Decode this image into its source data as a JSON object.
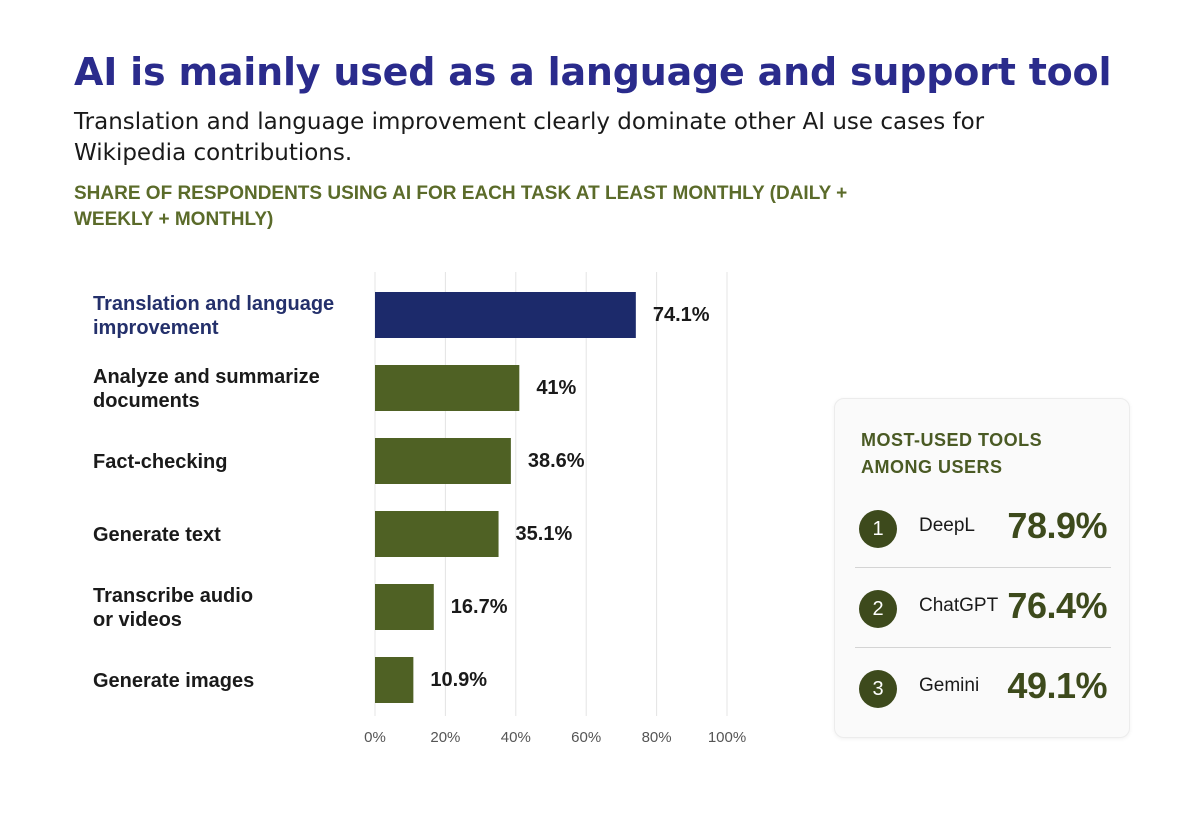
{
  "header": {
    "title": "AI is mainly used as a language and support tool",
    "subtitle": "Translation and language improvement clearly dominate other AI use cases for Wikipedia contributions.",
    "chart_heading": "SHARE OF RESPONDENTS USING AI FOR EACH TASK AT LEAST MONTHLY (DAILY + WEEKLY + MONTHLY)"
  },
  "chart_data": {
    "type": "bar",
    "orientation": "horizontal",
    "categories": [
      [
        "Translation and language",
        "improvement"
      ],
      [
        "Analyze and summarize",
        "documents"
      ],
      [
        "Fact-checking"
      ],
      [
        "Generate text"
      ],
      [
        "Transcribe audio",
        "or videos"
      ],
      [
        "Generate images"
      ]
    ],
    "values": [
      74.1,
      41,
      38.6,
      35.1,
      16.7,
      10.9
    ],
    "value_labels": [
      "74.1%",
      "41%",
      "38.6%",
      "35.1%",
      "16.7%",
      "10.9%"
    ],
    "xlim": [
      0,
      100
    ],
    "x_ticks": [
      "0%",
      "20%",
      "40%",
      "60%",
      "80%",
      "100%"
    ],
    "grid": "vertical",
    "highlight_index": 0,
    "colors": {
      "highlight": "#1c2a6b",
      "default": "#4f6124",
      "highlight_label": "#24306b",
      "label": "#1a1a1a",
      "grid": "#e4e4e4"
    }
  },
  "tools": {
    "title": "MOST-USED TOOLS AMONG USERS",
    "items": [
      {
        "rank": "1",
        "name": "DeepL",
        "percent": "78.9%"
      },
      {
        "rank": "2",
        "name": "ChatGPT",
        "percent": "76.4%"
      },
      {
        "rank": "3",
        "name": "Gemini",
        "percent": "49.1%"
      }
    ]
  }
}
